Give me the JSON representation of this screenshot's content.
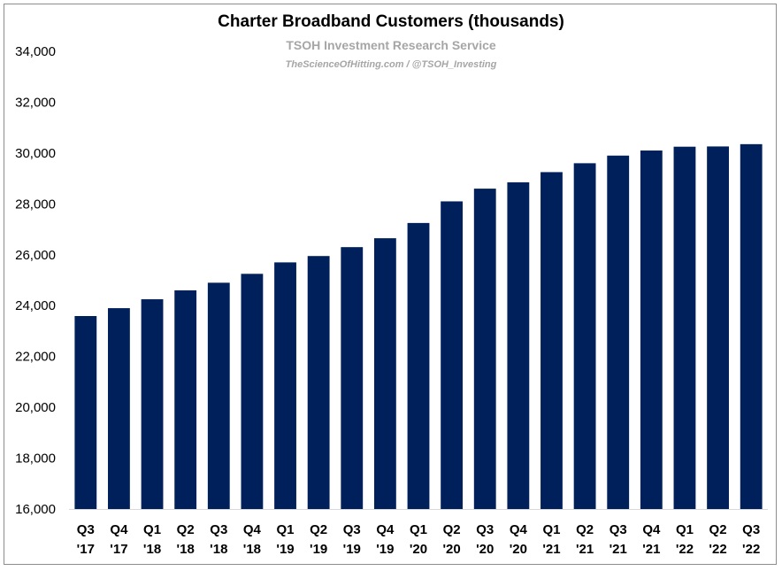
{
  "chart_data": {
    "type": "bar",
    "title": "Charter Broadband Customers (thousands)",
    "subtitle": "TSOH Investment Research Service",
    "byline": "TheScienceOfHitting.com / @TSOH_Investing",
    "categories": [
      [
        "Q3",
        "'17"
      ],
      [
        "Q4",
        "'17"
      ],
      [
        "Q1",
        "'18"
      ],
      [
        "Q2",
        "'18"
      ],
      [
        "Q3",
        "'18"
      ],
      [
        "Q4",
        "'18"
      ],
      [
        "Q1",
        "'19"
      ],
      [
        "Q2",
        "'19"
      ],
      [
        "Q3",
        "'19"
      ],
      [
        "Q4",
        "'19"
      ],
      [
        "Q1",
        "'20"
      ],
      [
        "Q2",
        "'20"
      ],
      [
        "Q3",
        "'20"
      ],
      [
        "Q4",
        "'20"
      ],
      [
        "Q1",
        "'21"
      ],
      [
        "Q2",
        "'21"
      ],
      [
        "Q3",
        "'21"
      ],
      [
        "Q4",
        "'21"
      ],
      [
        "Q1",
        "'22"
      ],
      [
        "Q2",
        "'22"
      ],
      [
        "Q3",
        "'22"
      ]
    ],
    "values": [
      23590,
      23900,
      24250,
      24600,
      24900,
      25250,
      25700,
      25950,
      26300,
      26650,
      27250,
      28100,
      28600,
      28850,
      29250,
      29600,
      29900,
      30100,
      30250,
      30260,
      30350
    ],
    "ylim": [
      16000,
      34000
    ],
    "yticks": [
      "16,000",
      "18,000",
      "20,000",
      "22,000",
      "24,000",
      "26,000",
      "28,000",
      "30,000",
      "32,000",
      "34,000"
    ],
    "ytick_values": [
      16000,
      18000,
      20000,
      22000,
      24000,
      26000,
      28000,
      30000,
      32000,
      34000
    ],
    "bar_color": "#00205b",
    "grid": false,
    "legend": "none"
  }
}
